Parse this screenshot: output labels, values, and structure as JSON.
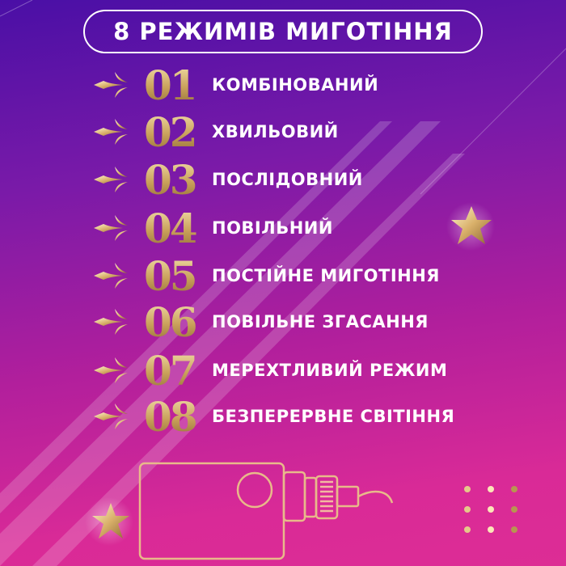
{
  "title": "8 РЕЖИМІВ МИГОТІННЯ",
  "modes": [
    {
      "num": "01",
      "label": "КОМБІНОВАНИЙ"
    },
    {
      "num": "02",
      "label": "ХВИЛЬОВИЙ"
    },
    {
      "num": "03",
      "label": "ПОСЛІДОВНИЙ"
    },
    {
      "num": "04",
      "label": "ПОВІЛЬНИЙ"
    },
    {
      "num": "05",
      "label": "ПОСТІЙНЕ МИГОТІННЯ"
    },
    {
      "num": "06",
      "label": "ПОВІЛЬНЕ ЗГАСАННЯ"
    },
    {
      "num": "07",
      "label": "МЕРЕХТЛИВИЙ РЕЖИМ"
    },
    {
      "num": "08",
      "label": "БЕЗПЕРЕРВНЕ СВІТІННЯ"
    }
  ],
  "colors": {
    "gold": "#d9b377",
    "top": "#4a0fa6",
    "bottom": "#dd2d95"
  },
  "icons": [
    "ornament-icon",
    "star-icon",
    "controller-device-icon",
    "dot-grid-icon"
  ]
}
